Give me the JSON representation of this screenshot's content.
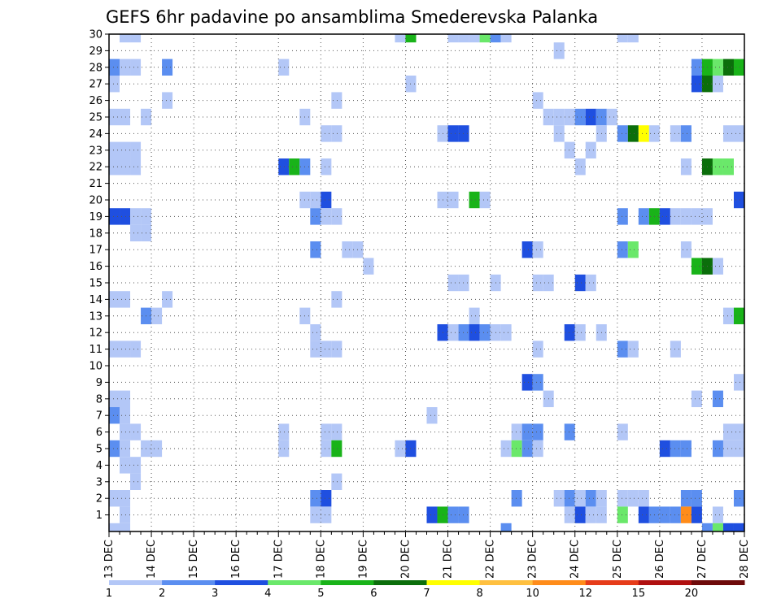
{
  "chart_data": {
    "type": "heatmap",
    "title": "GEFS 6hr padavine po ansamblima Smederevska Palanka",
    "x_tick_labels": [
      "13 DEC",
      "14 DEC",
      "15 DEC",
      "16 DEC",
      "17 DEC",
      "18 DEC",
      "19 DEC",
      "20 DEC",
      "21 DEC",
      "22 DEC",
      "23 DEC",
      "24 DEC",
      "25 DEC",
      "26 DEC",
      "27 DEC",
      "28 DEC"
    ],
    "y_tick_labels": [
      "1",
      "2",
      "3",
      "4",
      "5",
      "6",
      "7",
      "8",
      "9",
      "10",
      "11",
      "12",
      "13",
      "14",
      "15",
      "16",
      "17",
      "18",
      "19",
      "20",
      "21",
      "22",
      "23",
      "24",
      "25",
      "26",
      "27",
      "28",
      "29",
      "30"
    ],
    "x_range_days": [
      0,
      15
    ],
    "y_range": [
      0,
      30
    ],
    "time_step_hours": 6,
    "grid": true,
    "legend_placement": "bottom",
    "legend_labels": [
      "1",
      "2",
      "3",
      "4",
      "5",
      "6",
      "7",
      "8",
      "10",
      "12",
      "15",
      "20"
    ],
    "legend_colors": [
      "#b3c7f7",
      "#5b8ef0",
      "#1f4fe0",
      "#6ae86a",
      "#19b319",
      "#0b6e0b",
      "#ffff00",
      "#ffc040",
      "#ff8c1a",
      "#e63c1a",
      "#b01010",
      "#6e0a0a"
    ],
    "cells": [
      [
        0.25,
        30,
        1
      ],
      [
        0.5,
        30,
        1
      ],
      [
        6.75,
        30,
        1
      ],
      [
        7.0,
        30,
        5
      ],
      [
        8.0,
        30,
        1
      ],
      [
        8.25,
        30,
        1
      ],
      [
        8.5,
        30,
        1
      ],
      [
        8.75,
        30,
        4
      ],
      [
        9.0,
        30,
        2
      ],
      [
        9.25,
        30,
        1
      ],
      [
        12.0,
        30,
        1
      ],
      [
        12.25,
        30,
        1
      ],
      [
        10.5,
        29,
        1
      ],
      [
        0.0,
        28,
        2
      ],
      [
        0.25,
        28,
        1
      ],
      [
        0.5,
        28,
        1
      ],
      [
        1.25,
        28,
        2
      ],
      [
        4.0,
        28,
        1
      ],
      [
        13.75,
        28,
        2
      ],
      [
        14.0,
        28,
        5
      ],
      [
        14.25,
        28,
        4
      ],
      [
        14.5,
        28,
        6
      ],
      [
        14.75,
        28,
        5
      ],
      [
        0.0,
        27,
        1
      ],
      [
        7.0,
        27,
        1
      ],
      [
        13.75,
        27,
        3
      ],
      [
        14.0,
        27,
        6
      ],
      [
        14.25,
        27,
        1
      ],
      [
        1.25,
        26,
        1
      ],
      [
        5.25,
        26,
        1
      ],
      [
        10.0,
        26,
        1
      ],
      [
        0.0,
        25,
        1
      ],
      [
        0.25,
        25,
        1
      ],
      [
        0.75,
        25,
        1
      ],
      [
        4.5,
        25,
        1
      ],
      [
        10.25,
        25,
        1
      ],
      [
        10.5,
        25,
        1
      ],
      [
        10.75,
        25,
        1
      ],
      [
        11.0,
        25,
        2
      ],
      [
        11.25,
        25,
        3
      ],
      [
        11.5,
        25,
        2
      ],
      [
        11.75,
        25,
        1
      ],
      [
        5.0,
        24,
        1
      ],
      [
        5.25,
        24,
        1
      ],
      [
        7.75,
        24,
        1
      ],
      [
        8.0,
        24,
        3
      ],
      [
        8.25,
        24,
        3
      ],
      [
        10.5,
        24,
        1
      ],
      [
        11.5,
        24,
        1
      ],
      [
        12.0,
        24,
        2
      ],
      [
        12.25,
        24,
        6
      ],
      [
        12.5,
        24,
        7
      ],
      [
        12.75,
        24,
        1
      ],
      [
        13.25,
        24,
        1
      ],
      [
        13.5,
        24,
        2
      ],
      [
        14.5,
        24,
        1
      ],
      [
        14.75,
        24,
        1
      ],
      [
        0.0,
        23,
        1
      ],
      [
        0.25,
        23,
        1
      ],
      [
        0.5,
        23,
        1
      ],
      [
        10.75,
        23,
        1
      ],
      [
        11.25,
        23,
        1
      ],
      [
        0.0,
        22,
        1
      ],
      [
        0.25,
        22,
        1
      ],
      [
        0.5,
        22,
        1
      ],
      [
        4.0,
        22,
        3
      ],
      [
        4.25,
        22,
        5
      ],
      [
        4.5,
        22,
        2
      ],
      [
        5.0,
        22,
        1
      ],
      [
        11.0,
        22,
        1
      ],
      [
        13.5,
        22,
        1
      ],
      [
        14.0,
        22,
        6
      ],
      [
        14.25,
        22,
        4
      ],
      [
        14.5,
        22,
        4
      ],
      [
        4.5,
        20,
        1
      ],
      [
        4.75,
        20,
        1
      ],
      [
        5.0,
        20,
        3
      ],
      [
        7.75,
        20,
        1
      ],
      [
        8.0,
        20,
        1
      ],
      [
        8.5,
        20,
        5
      ],
      [
        8.75,
        20,
        1
      ],
      [
        14.75,
        20,
        3
      ],
      [
        0.0,
        19,
        3
      ],
      [
        0.25,
        19,
        3
      ],
      [
        0.5,
        19,
        1
      ],
      [
        0.75,
        19,
        1
      ],
      [
        4.75,
        19,
        2
      ],
      [
        5.0,
        19,
        1
      ],
      [
        5.25,
        19,
        1
      ],
      [
        12.0,
        19,
        2
      ],
      [
        12.5,
        19,
        2
      ],
      [
        12.75,
        19,
        5
      ],
      [
        13.0,
        19,
        3
      ],
      [
        13.25,
        19,
        1
      ],
      [
        13.5,
        19,
        1
      ],
      [
        13.75,
        19,
        1
      ],
      [
        14.0,
        19,
        1
      ],
      [
        0.5,
        18,
        1
      ],
      [
        0.75,
        18,
        1
      ],
      [
        4.75,
        17,
        2
      ],
      [
        5.5,
        17,
        1
      ],
      [
        5.75,
        17,
        1
      ],
      [
        9.75,
        17,
        3
      ],
      [
        10.0,
        17,
        1
      ],
      [
        12.0,
        17,
        2
      ],
      [
        12.25,
        17,
        4
      ],
      [
        13.5,
        17,
        1
      ],
      [
        6.0,
        16,
        1
      ],
      [
        13.75,
        16,
        5
      ],
      [
        14.0,
        16,
        6
      ],
      [
        14.25,
        16,
        1
      ],
      [
        8.0,
        15,
        1
      ],
      [
        8.25,
        15,
        1
      ],
      [
        9.0,
        15,
        1
      ],
      [
        10.0,
        15,
        1
      ],
      [
        10.25,
        15,
        1
      ],
      [
        11.0,
        15,
        3
      ],
      [
        11.25,
        15,
        1
      ],
      [
        0.0,
        14,
        1
      ],
      [
        0.25,
        14,
        1
      ],
      [
        1.25,
        14,
        1
      ],
      [
        5.25,
        14,
        1
      ],
      [
        0.75,
        13,
        2
      ],
      [
        1.0,
        13,
        1
      ],
      [
        4.5,
        13,
        1
      ],
      [
        8.5,
        13,
        1
      ],
      [
        14.5,
        13,
        1
      ],
      [
        14.75,
        13,
        5
      ],
      [
        4.75,
        12,
        1
      ],
      [
        7.75,
        12,
        3
      ],
      [
        8.0,
        12,
        1
      ],
      [
        8.25,
        12,
        2
      ],
      [
        8.5,
        12,
        3
      ],
      [
        8.75,
        12,
        2
      ],
      [
        9.0,
        12,
        1
      ],
      [
        9.25,
        12,
        1
      ],
      [
        10.75,
        12,
        3
      ],
      [
        11.0,
        12,
        1
      ],
      [
        11.5,
        12,
        1
      ],
      [
        0.0,
        11,
        1
      ],
      [
        0.25,
        11,
        1
      ],
      [
        0.5,
        11,
        1
      ],
      [
        4.75,
        11,
        1
      ],
      [
        5.0,
        11,
        1
      ],
      [
        5.25,
        11,
        1
      ],
      [
        10.0,
        11,
        1
      ],
      [
        12.0,
        11,
        2
      ],
      [
        12.25,
        11,
        1
      ],
      [
        13.25,
        11,
        1
      ],
      [
        9.75,
        9,
        3
      ],
      [
        10.0,
        9,
        2
      ],
      [
        14.75,
        9,
        1
      ],
      [
        0.0,
        8,
        1
      ],
      [
        0.25,
        8,
        1
      ],
      [
        10.25,
        8,
        1
      ],
      [
        13.75,
        8,
        1
      ],
      [
        14.25,
        8,
        2
      ],
      [
        0.0,
        7,
        2
      ],
      [
        0.25,
        7,
        1
      ],
      [
        7.5,
        7,
        1
      ],
      [
        0.25,
        6,
        1
      ],
      [
        0.5,
        6,
        1
      ],
      [
        4.0,
        6,
        1
      ],
      [
        5.0,
        6,
        1
      ],
      [
        5.25,
        6,
        1
      ],
      [
        9.5,
        6,
        1
      ],
      [
        9.75,
        6,
        2
      ],
      [
        10.0,
        6,
        2
      ],
      [
        10.75,
        6,
        2
      ],
      [
        12.0,
        6,
        1
      ],
      [
        14.5,
        6,
        1
      ],
      [
        14.75,
        6,
        1
      ],
      [
        0.0,
        5,
        2
      ],
      [
        0.25,
        5,
        1
      ],
      [
        0.75,
        5,
        1
      ],
      [
        1.0,
        5,
        1
      ],
      [
        4.0,
        5,
        1
      ],
      [
        5.0,
        5,
        1
      ],
      [
        5.25,
        5,
        5
      ],
      [
        6.75,
        5,
        1
      ],
      [
        7.0,
        5,
        3
      ],
      [
        9.25,
        5,
        1
      ],
      [
        9.5,
        5,
        4
      ],
      [
        9.75,
        5,
        2
      ],
      [
        10.0,
        5,
        1
      ],
      [
        13.0,
        5,
        3
      ],
      [
        13.25,
        5,
        2
      ],
      [
        13.5,
        5,
        2
      ],
      [
        14.25,
        5,
        2
      ],
      [
        14.5,
        5,
        1
      ],
      [
        14.75,
        5,
        1
      ],
      [
        0.25,
        4,
        1
      ],
      [
        0.5,
        4,
        1
      ],
      [
        0.5,
        3,
        1
      ],
      [
        5.25,
        3,
        1
      ],
      [
        0.0,
        2,
        1
      ],
      [
        0.25,
        2,
        1
      ],
      [
        4.75,
        2,
        2
      ],
      [
        5.0,
        2,
        3
      ],
      [
        9.5,
        2,
        2
      ],
      [
        10.5,
        2,
        1
      ],
      [
        10.75,
        2,
        2
      ],
      [
        11.0,
        2,
        1
      ],
      [
        11.25,
        2,
        2
      ],
      [
        11.5,
        2,
        1
      ],
      [
        12.0,
        2,
        1
      ],
      [
        12.25,
        2,
        1
      ],
      [
        12.5,
        2,
        1
      ],
      [
        13.5,
        2,
        2
      ],
      [
        13.75,
        2,
        2
      ],
      [
        14.75,
        2,
        2
      ],
      [
        0.25,
        1,
        1
      ],
      [
        4.75,
        1,
        1
      ],
      [
        5.0,
        1,
        1
      ],
      [
        7.5,
        1,
        3
      ],
      [
        7.75,
        1,
        5
      ],
      [
        8.0,
        1,
        2
      ],
      [
        8.25,
        1,
        2
      ],
      [
        10.75,
        1,
        1
      ],
      [
        11.0,
        1,
        3
      ],
      [
        11.25,
        1,
        1
      ],
      [
        11.5,
        1,
        1
      ],
      [
        12.0,
        1,
        4
      ],
      [
        12.5,
        1,
        3
      ],
      [
        12.75,
        1,
        2
      ],
      [
        13.0,
        1,
        2
      ],
      [
        13.25,
        1,
        2
      ],
      [
        13.5,
        1,
        9
      ],
      [
        13.75,
        1,
        3
      ],
      [
        14.25,
        1,
        1
      ],
      [
        0.0,
        0,
        1
      ],
      [
        0.25,
        0,
        1
      ],
      [
        9.25,
        0,
        2
      ],
      [
        14.0,
        0,
        2
      ],
      [
        14.25,
        0,
        4
      ],
      [
        14.5,
        0,
        3
      ],
      [
        14.75,
        0,
        3
      ]
    ]
  }
}
